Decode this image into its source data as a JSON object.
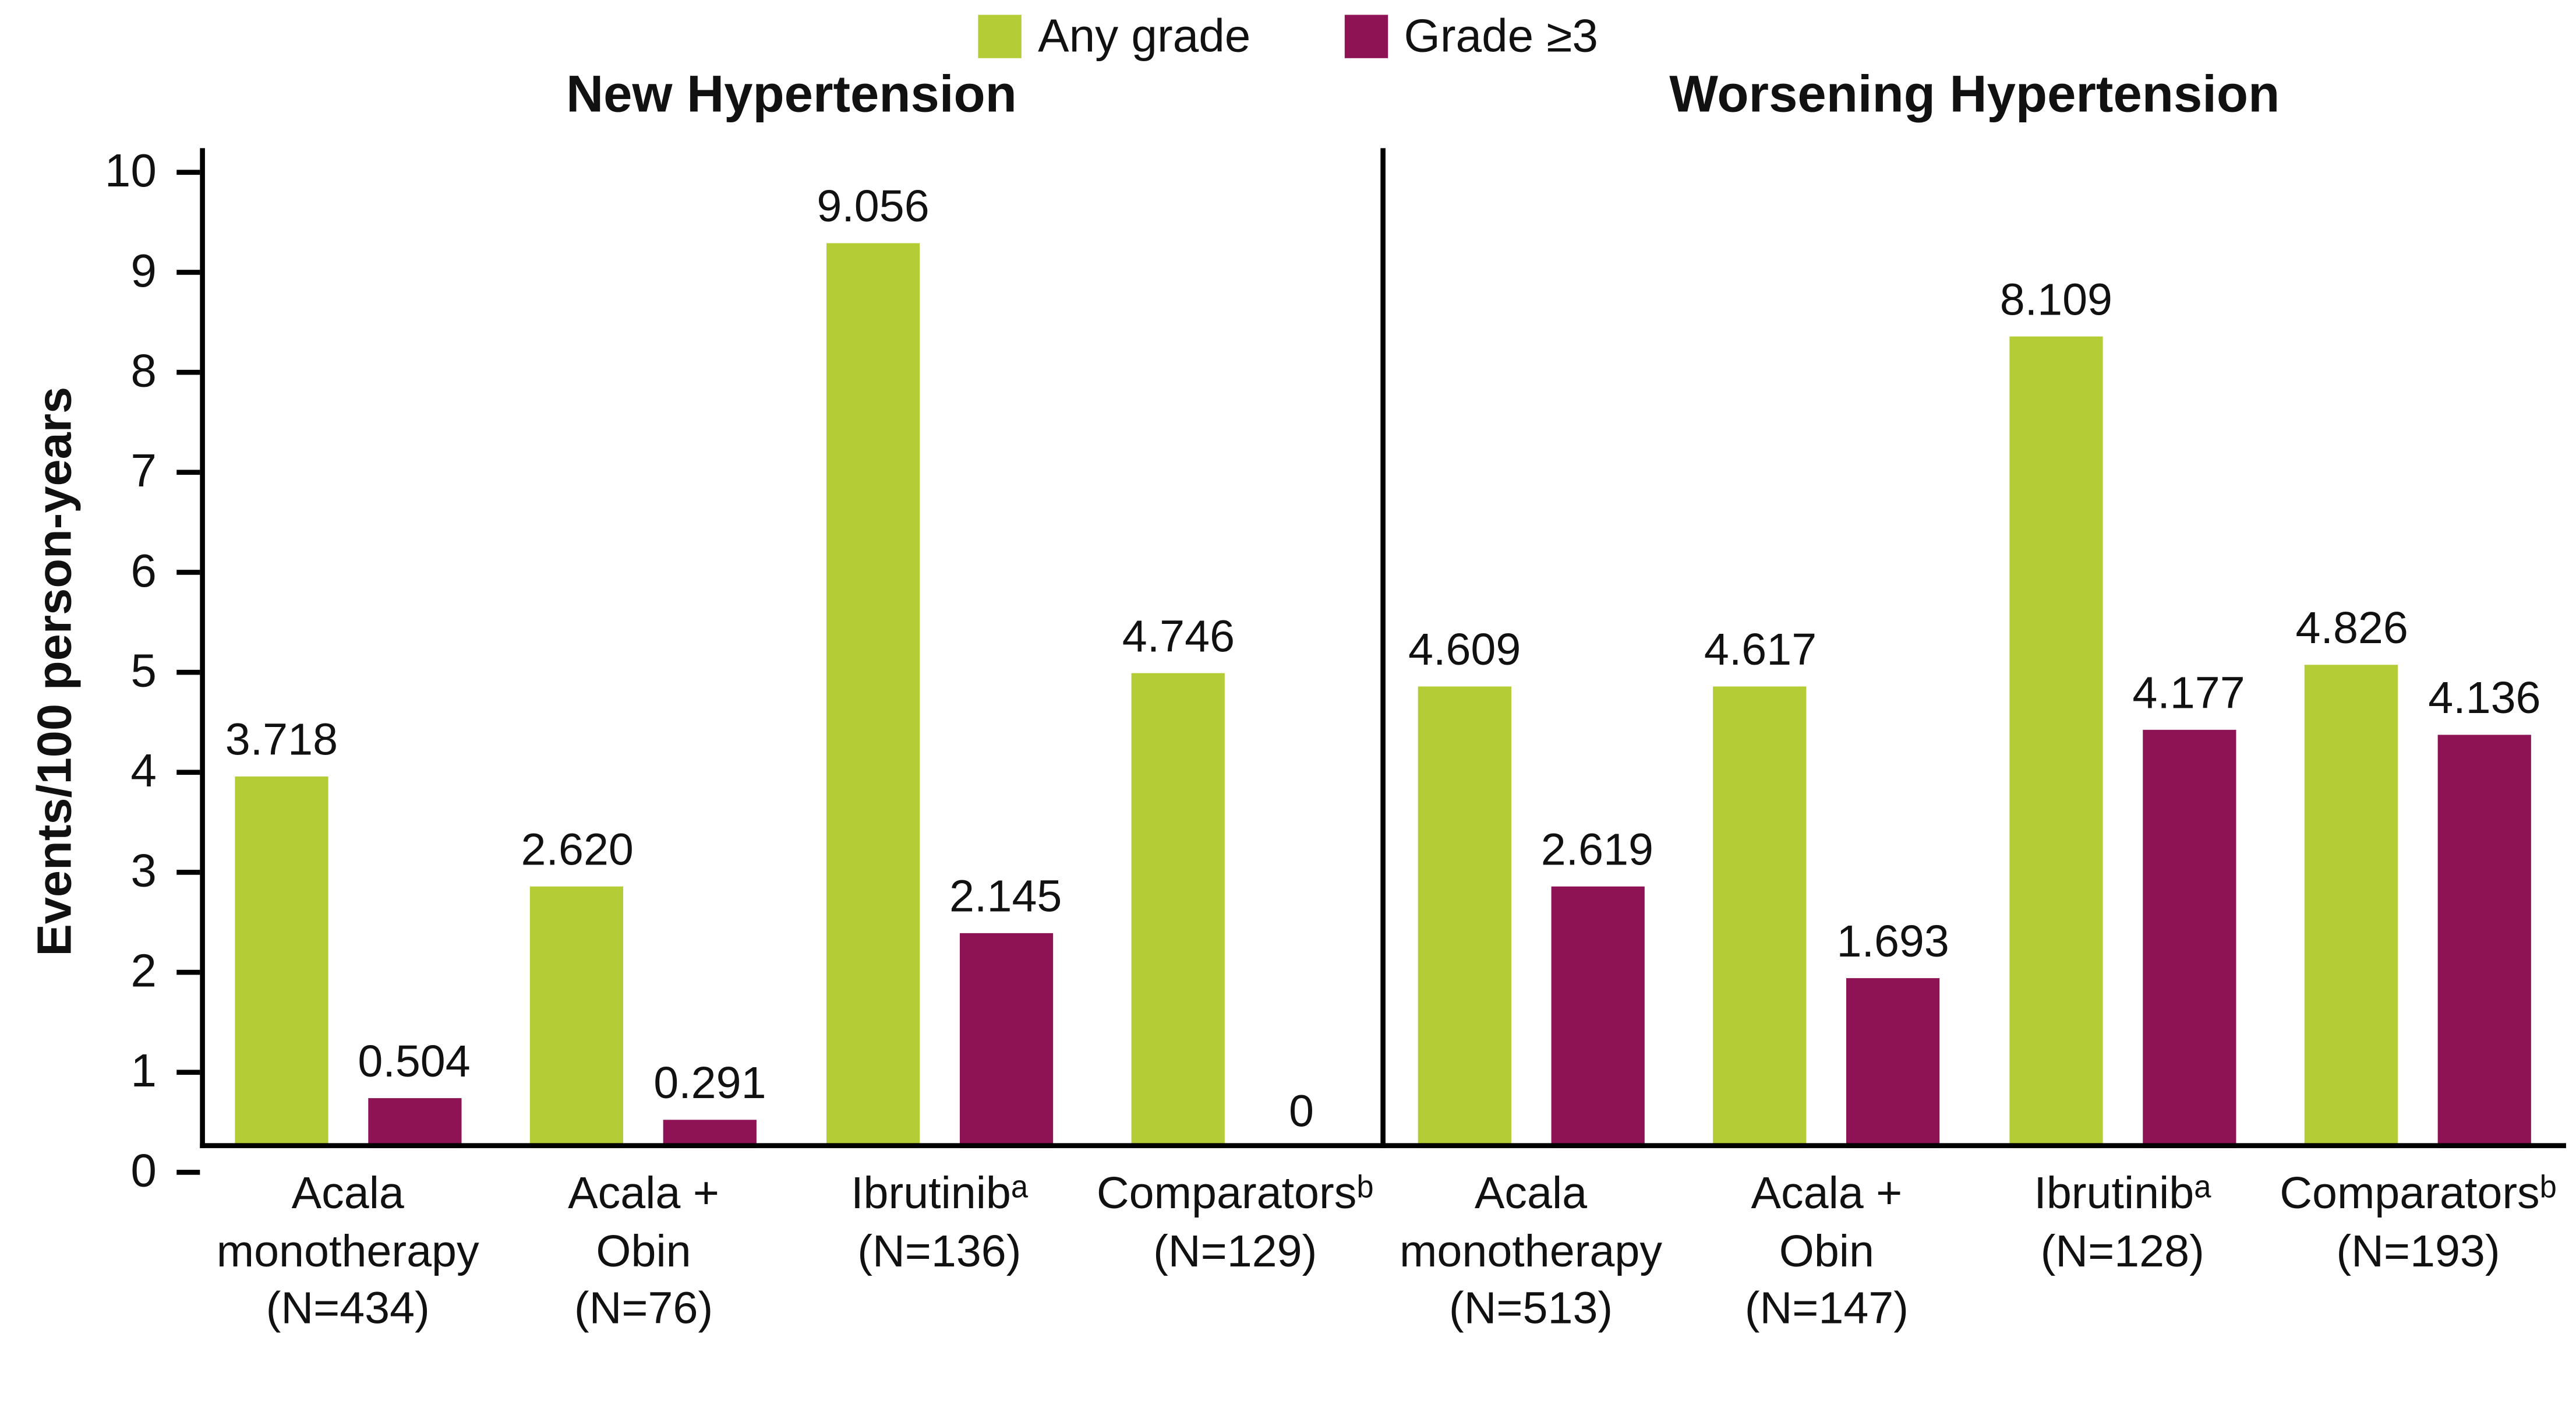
{
  "chart_data": {
    "type": "bar",
    "ylabel": "Events/100 person-years",
    "ylim": [
      0,
      10
    ],
    "ytick_step": 1,
    "grid": false,
    "legend_position": "top-center",
    "legend": [
      {
        "label": "Any grade",
        "color": "#b4cc35"
      },
      {
        "label": "Grade ≥3",
        "color": "#8d1355"
      }
    ],
    "series": [
      "Any grade",
      "Grade ≥3"
    ],
    "panels": [
      {
        "title": "New Hypertension",
        "groups": [
          {
            "label_lines": [
              "Acala",
              "monotherapy",
              "(N=434)"
            ],
            "values": [
              3.718,
              0.504
            ],
            "value_labels": [
              "3.718",
              "0.504"
            ]
          },
          {
            "label_lines": [
              "Acala +",
              "Obin",
              "(N=76)"
            ],
            "values": [
              2.62,
              0.291
            ],
            "value_labels": [
              "2.620",
              "0.291"
            ]
          },
          {
            "label_lines": [
              "Ibrutinibᵃ",
              "(N=136)"
            ],
            "values": [
              9.056,
              2.145
            ],
            "value_labels": [
              "9.056",
              "2.145"
            ]
          },
          {
            "label_lines": [
              "Comparatorsᵇ",
              "(N=129)"
            ],
            "values": [
              4.746,
              0
            ],
            "value_labels": [
              "4.746",
              "0"
            ]
          }
        ]
      },
      {
        "title": "Worsening Hypertension",
        "groups": [
          {
            "label_lines": [
              "Acala",
              "monotherapy",
              "(N=513)"
            ],
            "values": [
              4.609,
              2.619
            ],
            "value_labels": [
              "4.609",
              "2.619"
            ]
          },
          {
            "label_lines": [
              "Acala +",
              "Obin",
              "(N=147)"
            ],
            "values": [
              4.617,
              1.693
            ],
            "value_labels": [
              "4.617",
              "1.693"
            ]
          },
          {
            "label_lines": [
              "Ibrutinibᵃ",
              "(N=128)"
            ],
            "values": [
              8.109,
              4.177
            ],
            "value_labels": [
              "8.109",
              "4.177"
            ]
          },
          {
            "label_lines": [
              "Comparatorsᵇ",
              "(N=193)"
            ],
            "values": [
              4.826,
              4.136
            ],
            "value_labels": [
              "4.826",
              "4.136"
            ]
          }
        ]
      }
    ]
  }
}
